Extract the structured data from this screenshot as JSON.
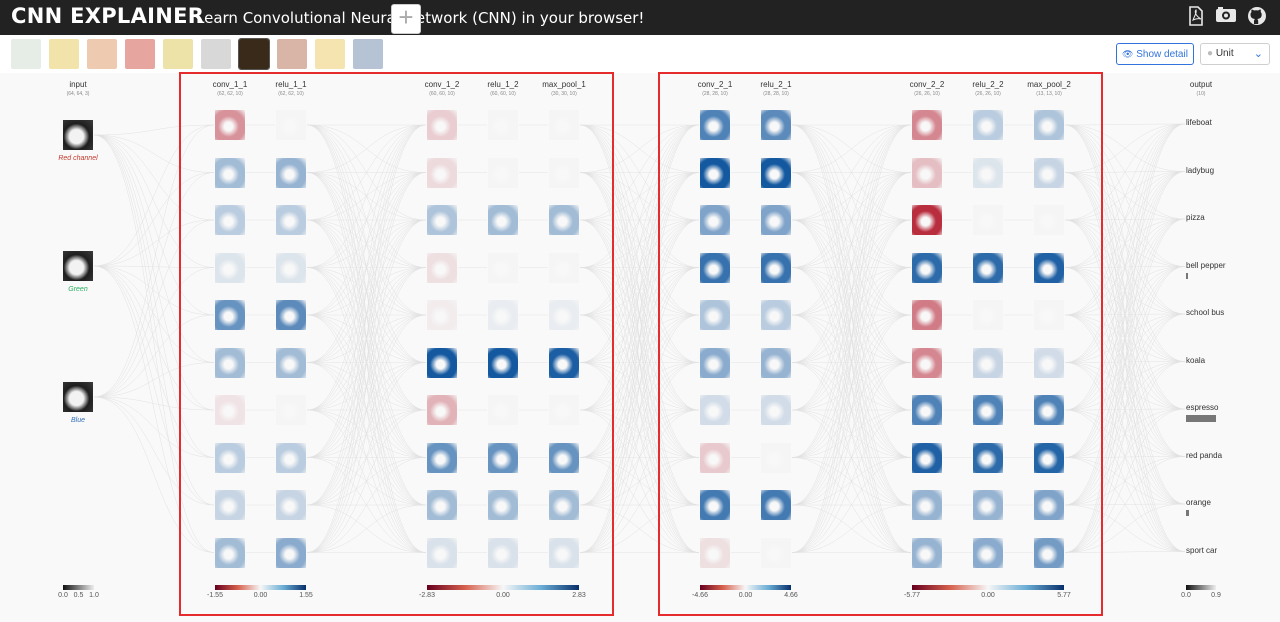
{
  "header": {
    "title": "CNN EXPLAINER",
    "subtitle": "Learn Convolutional Neural Network (CNN) in your browser!",
    "icons": [
      "pdf-icon",
      "video-icon",
      "github-icon"
    ]
  },
  "toolbar": {
    "thumbnails": [
      {
        "name": "thumb-1",
        "color": "#c8d4c8"
      },
      {
        "name": "thumb-2",
        "color": "#e0c040"
      },
      {
        "name": "thumb-3",
        "color": "#d88a50"
      },
      {
        "name": "thumb-4",
        "color": "#c83a2a"
      },
      {
        "name": "thumb-5",
        "color": "#d8c040"
      },
      {
        "name": "thumb-6",
        "color": "#a8a8a8"
      },
      {
        "name": "thumb-espresso",
        "color": "#3a2a1a",
        "selected": true
      },
      {
        "name": "thumb-8",
        "color": "#a85a3a"
      },
      {
        "name": "thumb-9",
        "color": "#e8c050"
      },
      {
        "name": "thumb-10",
        "color": "#5a7aa0"
      }
    ],
    "add_label": "+",
    "show_detail_label": "Show detail",
    "unit_label": "Unit"
  },
  "layers": [
    {
      "id": "input",
      "name": "input",
      "dim": "(64, 64, 3)"
    },
    {
      "id": "conv_1_1",
      "name": "conv_1_1",
      "dim": "(62, 62, 10)"
    },
    {
      "id": "relu_1_1",
      "name": "relu_1_1",
      "dim": "(62, 62, 10)"
    },
    {
      "id": "conv_1_2",
      "name": "conv_1_2",
      "dim": "(60, 60, 10)"
    },
    {
      "id": "relu_1_2",
      "name": "relu_1_2",
      "dim": "(60, 60, 10)"
    },
    {
      "id": "max_pool_1",
      "name": "max_pool_1",
      "dim": "(30, 30, 10)"
    },
    {
      "id": "conv_2_1",
      "name": "conv_2_1",
      "dim": "(28, 28, 10)"
    },
    {
      "id": "relu_2_1",
      "name": "relu_2_1",
      "dim": "(28, 28, 10)"
    },
    {
      "id": "conv_2_2",
      "name": "conv_2_2",
      "dim": "(26, 26, 10)"
    },
    {
      "id": "relu_2_2",
      "name": "relu_2_2",
      "dim": "(26, 26, 10)"
    },
    {
      "id": "max_pool_2",
      "name": "max_pool_2",
      "dim": "(13, 13, 10)"
    },
    {
      "id": "output",
      "name": "output",
      "dim": "(10)"
    }
  ],
  "input_channels": [
    {
      "label": "Red channel",
      "color": "#c0392b"
    },
    {
      "label": "Green",
      "color": "#27ae60"
    },
    {
      "label": "Blue",
      "color": "#2e6fb8"
    }
  ],
  "output_classes": [
    {
      "label": "lifeboat",
      "prob": 0.0
    },
    {
      "label": "ladybug",
      "prob": 0.0
    },
    {
      "label": "pizza",
      "prob": 0.0
    },
    {
      "label": "bell pepper",
      "prob": 0.01
    },
    {
      "label": "school bus",
      "prob": 0.0
    },
    {
      "label": "koala",
      "prob": 0.0
    },
    {
      "label": "espresso",
      "prob": 0.9
    },
    {
      "label": "red panda",
      "prob": 0.0
    },
    {
      "label": "orange",
      "prob": 0.1
    },
    {
      "label": "sport car",
      "prob": 0.0
    }
  ],
  "activations": {
    "conv_1_1": [
      0.45,
      -0.35,
      -0.25,
      -0.1,
      -0.6,
      -0.35,
      0.08,
      -0.25,
      -0.2,
      -0.35
    ],
    "relu_1_1": [
      0.0,
      -0.4,
      -0.25,
      -0.1,
      -0.65,
      -0.35,
      0.0,
      -0.25,
      -0.2,
      -0.45
    ],
    "conv_1_2": [
      0.18,
      0.12,
      -0.3,
      0.1,
      0.04,
      -0.95,
      0.3,
      -0.6,
      -0.35,
      -0.12
    ],
    "relu_1_2": [
      0.0,
      0.0,
      -0.35,
      0.0,
      -0.05,
      -0.95,
      0.0,
      -0.6,
      -0.35,
      -0.12
    ],
    "max_pool_1": [
      0.0,
      0.0,
      -0.35,
      0.0,
      -0.05,
      -0.92,
      0.0,
      -0.6,
      -0.35,
      -0.12
    ],
    "conv_2_1": [
      -0.7,
      -0.95,
      -0.5,
      -0.8,
      -0.3,
      -0.45,
      -0.15,
      0.2,
      -0.75,
      0.1
    ],
    "relu_2_1": [
      -0.65,
      -0.95,
      -0.5,
      -0.8,
      -0.25,
      -0.4,
      -0.15,
      0.0,
      -0.75,
      0.0
    ],
    "conv_2_2": [
      0.5,
      0.25,
      0.9,
      -0.85,
      0.55,
      0.5,
      -0.7,
      -0.9,
      -0.4,
      -0.4
    ],
    "relu_2_2": [
      -0.25,
      -0.1,
      0.0,
      -0.85,
      0.0,
      -0.2,
      -0.7,
      -0.85,
      -0.4,
      -0.45
    ],
    "max_pool_2": [
      -0.3,
      -0.2,
      0.0,
      -0.9,
      0.0,
      -0.15,
      -0.7,
      -0.88,
      -0.5,
      -0.55
    ]
  },
  "legends": [
    {
      "min": "0.0",
      "mid": "0.5",
      "max": "1.0",
      "kind": "gray"
    },
    {
      "min": "-1.55",
      "mid": "0.00",
      "max": "1.55",
      "kind": "diverging"
    },
    {
      "min": "-2.83",
      "mid": "0.00",
      "max": "2.83",
      "kind": "diverging"
    },
    {
      "min": "-4.66",
      "mid": "0.00",
      "max": "4.66",
      "kind": "diverging"
    },
    {
      "min": "-5.77",
      "mid": "0.00",
      "max": "5.77",
      "kind": "diverging"
    },
    {
      "min": "0.0",
      "max": "0.9",
      "kind": "gray"
    }
  ],
  "colors": {
    "positive": "#08519c",
    "negative": "#b2182b",
    "neutral": "#f5f5f5",
    "highlight": "#e52b2b",
    "accent": "#3273dc"
  }
}
